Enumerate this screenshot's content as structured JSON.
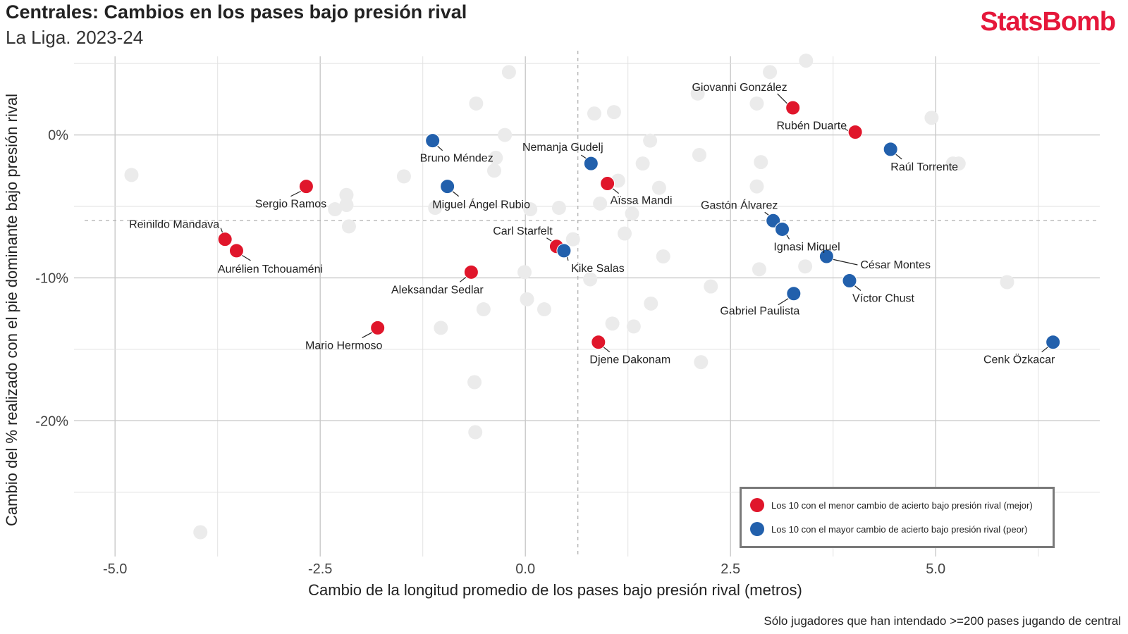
{
  "header": {
    "title": "Centrales: Cambios en los pases bajo presión rival",
    "subtitle": "La Liga. 2023-24",
    "logo": "StatsBomb"
  },
  "caption": "Sólo jugadores que han intendado >=200 pases jugando de central",
  "legend": {
    "items": [
      {
        "label": "Los 10 con el menor cambio de acierto bajo presión rival (mejor)",
        "color": "#e0162b"
      },
      {
        "label": "Los 10 con el mayor cambio de acierto bajo presión rival (peor)",
        "color": "#2260ac"
      }
    ]
  },
  "chart_data": {
    "type": "scatter",
    "xlabel": "Cambio de la longitud promedio de los pases bajo presión rival (metros)",
    "ylabel": "Cambio del % realizado con el pie dominante bajo presión rival",
    "xlim": [
      -5.5,
      7.0
    ],
    "ylim": [
      -29.5,
      5.5
    ],
    "x_ticks": [
      {
        "value": -5.0,
        "label": "-5.0"
      },
      {
        "value": -2.5,
        "label": "-2.5"
      },
      {
        "value": 0.0,
        "label": "0.0"
      },
      {
        "value": 2.5,
        "label": "2.5"
      },
      {
        "value": 5.0,
        "label": "5.0"
      }
    ],
    "y_ticks": [
      {
        "value": 0,
        "label": "0%"
      },
      {
        "value": -10,
        "label": "-10%"
      },
      {
        "value": -20,
        "label": "-20%"
      }
    ],
    "grid": true,
    "reference_lines": {
      "x": 0.64,
      "y": -6.0
    },
    "legend_position": "bottom-right",
    "colors": {
      "best": "#e0162b",
      "worst": "#2260ac",
      "other": "#ebebeb"
    },
    "highlighted": [
      {
        "name": "Giovanni González",
        "x": 3.26,
        "y": 1.9,
        "group": "best"
      },
      {
        "name": "Rubén Duarte",
        "x": 4.02,
        "y": 0.2,
        "group": "best"
      },
      {
        "name": "Sergio Ramos",
        "x": -2.67,
        "y": -3.6,
        "group": "best"
      },
      {
        "name": "Reinildo Mandava",
        "x": -3.66,
        "y": -7.3,
        "group": "best"
      },
      {
        "name": "Aurélien Tchouaméni",
        "x": -3.52,
        "y": -8.1,
        "group": "best"
      },
      {
        "name": "Aïssa Mandi",
        "x": 1.0,
        "y": -3.4,
        "group": "best"
      },
      {
        "name": "Carl Starfelt",
        "x": 0.38,
        "y": -7.8,
        "group": "best"
      },
      {
        "name": "Aleksandar Sedlar",
        "x": -0.66,
        "y": -9.6,
        "group": "best"
      },
      {
        "name": "Mario Hermoso",
        "x": -1.8,
        "y": -13.5,
        "group": "best"
      },
      {
        "name": "Djene Dakonam",
        "x": 0.89,
        "y": -14.5,
        "group": "best"
      },
      {
        "name": "Bruno Méndez",
        "x": -1.13,
        "y": -0.4,
        "group": "worst"
      },
      {
        "name": "Raúl Torrente",
        "x": 4.45,
        "y": -1.0,
        "group": "worst"
      },
      {
        "name": "Nemanja Gudelj",
        "x": 0.8,
        "y": -2.0,
        "group": "worst"
      },
      {
        "name": "Miguel Ángel Rubio",
        "x": -0.95,
        "y": -3.6,
        "group": "worst"
      },
      {
        "name": "Gastón Álvarez",
        "x": 3.02,
        "y": -6.0,
        "group": "worst"
      },
      {
        "name": "Ignasi Miquel",
        "x": 3.13,
        "y": -6.6,
        "group": "worst"
      },
      {
        "name": "César Montes",
        "x": 3.67,
        "y": -8.5,
        "group": "worst"
      },
      {
        "name": "Kike Salas",
        "x": 0.47,
        "y": -8.1,
        "group": "worst"
      },
      {
        "name": "Víctor Chust",
        "x": 3.95,
        "y": -10.2,
        "group": "worst"
      },
      {
        "name": "Gabriel Paulista",
        "x": 3.27,
        "y": -11.1,
        "group": "worst"
      },
      {
        "name": "Cenk Özkacar",
        "x": 6.43,
        "y": -14.5,
        "group": "worst"
      }
    ],
    "others": [
      [
        3.42,
        5.2
      ],
      [
        -0.2,
        4.4
      ],
      [
        2.98,
        4.4
      ],
      [
        -0.6,
        2.2
      ],
      [
        2.1,
        2.9
      ],
      [
        2.82,
        2.2
      ],
      [
        1.08,
        1.6
      ],
      [
        4.95,
        1.2
      ],
      [
        0.84,
        1.5
      ],
      [
        1.52,
        -0.4
      ],
      [
        -0.25,
        0.0
      ],
      [
        2.12,
        -1.4
      ],
      [
        2.87,
        -1.9
      ],
      [
        1.43,
        -2.0
      ],
      [
        5.21,
        -2.0
      ],
      [
        5.28,
        -2.0
      ],
      [
        -4.8,
        -2.8
      ],
      [
        -1.48,
        -2.9
      ],
      [
        -0.36,
        -1.6
      ],
      [
        -0.38,
        -2.5
      ],
      [
        1.13,
        -3.2
      ],
      [
        1.63,
        -3.7
      ],
      [
        2.82,
        -3.6
      ],
      [
        -2.18,
        -4.2
      ],
      [
        -2.18,
        -4.9
      ],
      [
        -2.32,
        -5.2
      ],
      [
        0.91,
        -4.8
      ],
      [
        0.41,
        -5.1
      ],
      [
        -1.1,
        -5.1
      ],
      [
        0.06,
        -5.2
      ],
      [
        1.3,
        -5.5
      ],
      [
        -2.15,
        -6.4
      ],
      [
        1.21,
        -6.9
      ],
      [
        0.58,
        -7.3
      ],
      [
        3.41,
        -9.2
      ],
      [
        1.68,
        -8.5
      ],
      [
        2.85,
        -9.4
      ],
      [
        0.79,
        -10.1
      ],
      [
        -0.01,
        -9.6
      ],
      [
        2.26,
        -10.6
      ],
      [
        5.87,
        -10.3
      ],
      [
        0.02,
        -11.5
      ],
      [
        1.53,
        -11.8
      ],
      [
        0.23,
        -12.2
      ],
      [
        -0.51,
        -12.2
      ],
      [
        -1.03,
        -13.5
      ],
      [
        1.06,
        -13.2
      ],
      [
        1.32,
        -13.4
      ],
      [
        2.14,
        -15.9
      ],
      [
        -0.62,
        -17.3
      ],
      [
        -0.61,
        -20.8
      ],
      [
        -3.96,
        -27.8
      ]
    ]
  }
}
